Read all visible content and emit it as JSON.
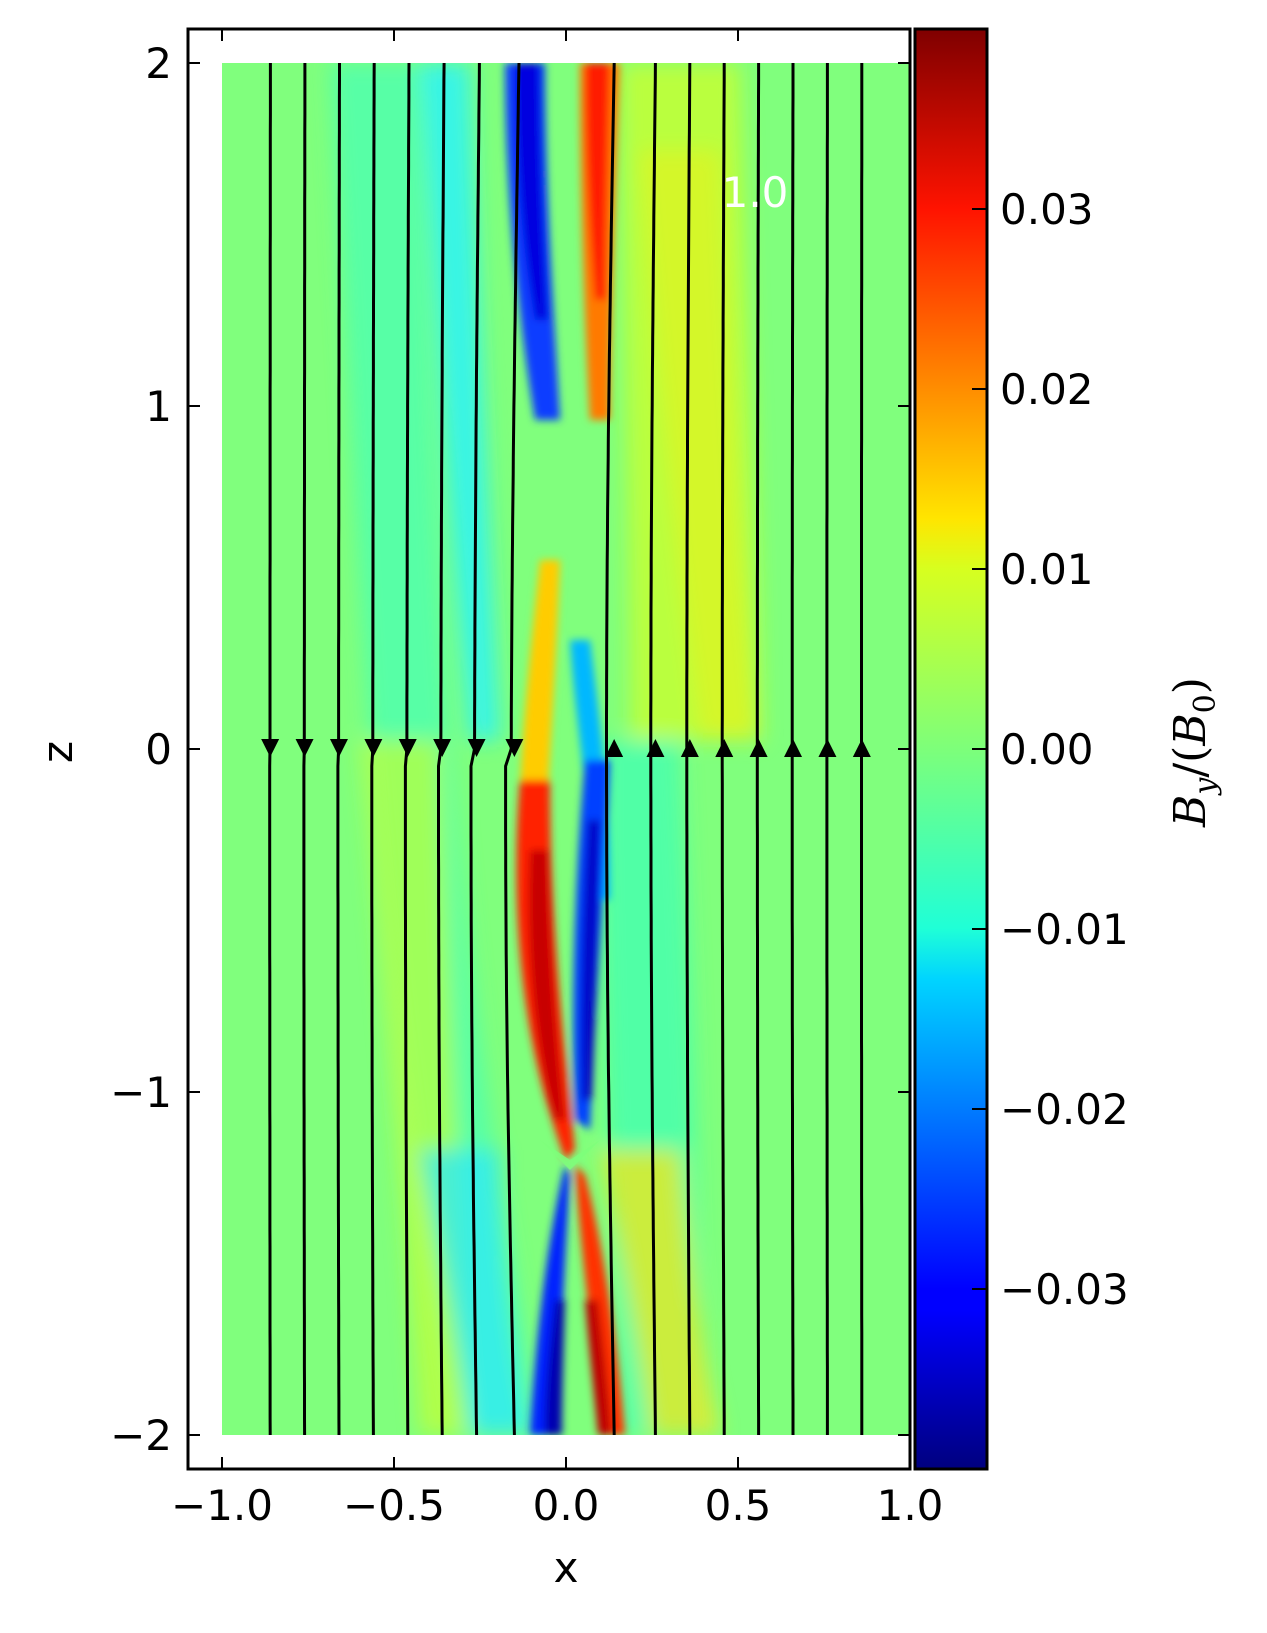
{
  "chart_data": {
    "type": "heatmap",
    "title": "",
    "xlabel": "x",
    "ylabel": "z",
    "xlim": [
      -1.0,
      1.0
    ],
    "ylim": [
      -2.0,
      2.0
    ],
    "x_ticks": [
      "−1.0",
      "−0.5",
      "0.0",
      "0.5",
      "1.0"
    ],
    "y_ticks": [
      "2",
      "1",
      "0",
      "−1",
      "−2"
    ],
    "colorbar": {
      "label": "B_y/(B_0)",
      "colormap": "jet",
      "range": [
        -0.04,
        0.04
      ],
      "ticks": [
        "0.03",
        "0.02",
        "0.01",
        "0.00",
        "−0.01",
        "−0.02",
        "−0.03"
      ]
    },
    "annotation": "1.0",
    "field_lines": {
      "x_positions": [
        -0.86,
        -0.76,
        -0.66,
        -0.56,
        -0.46,
        -0.36,
        -0.26,
        -0.15,
        0.14,
        0.26,
        0.36,
        0.46,
        0.56,
        0.66,
        0.76,
        0.86
      ],
      "arrow_direction": [
        "down",
        "down",
        "down",
        "down",
        "down",
        "down",
        "down",
        "down",
        "up",
        "up",
        "up",
        "up",
        "up",
        "up",
        "up",
        "up"
      ],
      "arrow_z": 0.0
    },
    "grid": false,
    "legend": "none"
  },
  "colors": {
    "background_field": "#80ff7d",
    "line": "#000000",
    "annotation": "#ffffff"
  }
}
